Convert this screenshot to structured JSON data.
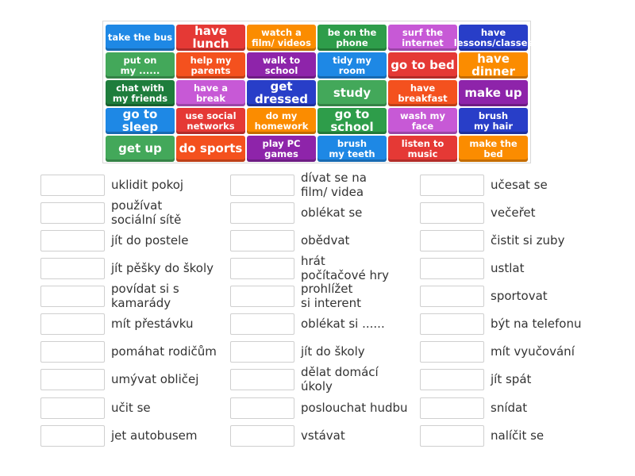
{
  "tiles": [
    [
      {
        "text": "take the bus",
        "color": "#1e88e5",
        "size": "small"
      },
      {
        "text": "have lunch",
        "color": "#e53935",
        "size": "big"
      },
      {
        "text": "watch a\nfilm/ videos",
        "color": "#fb8c00",
        "size": "small"
      },
      {
        "text": "be on the\nphone",
        "color": "#2e9d4a",
        "size": "small"
      },
      {
        "text": "surf the\ninternet",
        "color": "#c759d6",
        "size": "small"
      },
      {
        "text": "have\nlessons/classes",
        "color": "#283ec8",
        "size": "small"
      }
    ],
    [
      {
        "text": "put on\nmy ......",
        "color": "#43a85a",
        "size": "small"
      },
      {
        "text": "help my\nparents",
        "color": "#f4511e",
        "size": "small"
      },
      {
        "text": "walk to\nschool",
        "color": "#8e24aa",
        "size": "small"
      },
      {
        "text": "tidy my room",
        "color": "#1e88e5",
        "size": "small"
      },
      {
        "text": "go to bed",
        "color": "#e53935",
        "size": "big"
      },
      {
        "text": "have dinner",
        "color": "#fb8c00",
        "size": "big"
      }
    ],
    [
      {
        "text": "chat with\nmy friends",
        "color": "#1e7d3c",
        "size": "small"
      },
      {
        "text": "have a break",
        "color": "#c759d6",
        "size": "small"
      },
      {
        "text": "get dressed",
        "color": "#283ec8",
        "size": "big"
      },
      {
        "text": "study",
        "color": "#43a85a",
        "size": "big"
      },
      {
        "text": "have\nbreakfast",
        "color": "#f4511e",
        "size": "small"
      },
      {
        "text": "make up",
        "color": "#8e24aa",
        "size": "big"
      }
    ],
    [
      {
        "text": "go to sleep",
        "color": "#1e88e5",
        "size": "big"
      },
      {
        "text": "use social\nnetworks",
        "color": "#e53935",
        "size": "small"
      },
      {
        "text": "do my\nhomework",
        "color": "#fb8c00",
        "size": "small"
      },
      {
        "text": "go to school",
        "color": "#2e9d4a",
        "size": "big"
      },
      {
        "text": "wash my face",
        "color": "#c759d6",
        "size": "small"
      },
      {
        "text": "brush\nmy hair",
        "color": "#283ec8",
        "size": "small"
      }
    ],
    [
      {
        "text": "get up",
        "color": "#43a85a",
        "size": "big"
      },
      {
        "text": "do sports",
        "color": "#f4511e",
        "size": "big"
      },
      {
        "text": "play PC\ngames",
        "color": "#8e24aa",
        "size": "small"
      },
      {
        "text": "brush\nmy teeth",
        "color": "#1e88e5",
        "size": "small"
      },
      {
        "text": "listen to\nmusic",
        "color": "#e53935",
        "size": "small"
      },
      {
        "text": "make the bed",
        "color": "#fb8c00",
        "size": "small"
      }
    ]
  ],
  "columns": [
    [
      "uklidit pokoj",
      "používat\nsociální sítě",
      "jít do postele",
      "jít pěšky do školy",
      "povídat si s\nkamarády",
      "mít přestávku",
      "pomáhat rodičům",
      "umývat obličej",
      "učit se",
      "jet autobusem"
    ],
    [
      "dívat se na\nfilm/ videa",
      "oblékat se",
      "obědvat",
      "hrát\npočítačové hry",
      "prohlížet\nsi interent",
      "oblékat si ......",
      "jít do školy",
      "dělat domácí\núkoly",
      "poslouchat hudbu",
      "vstávat"
    ],
    [
      "učesat se",
      "večeřet",
      "čistit si zuby",
      "ustlat",
      "sportovat",
      "být na telefonu",
      "mít vyučování",
      "jít spát",
      "snídat",
      "nalíčit se"
    ]
  ]
}
